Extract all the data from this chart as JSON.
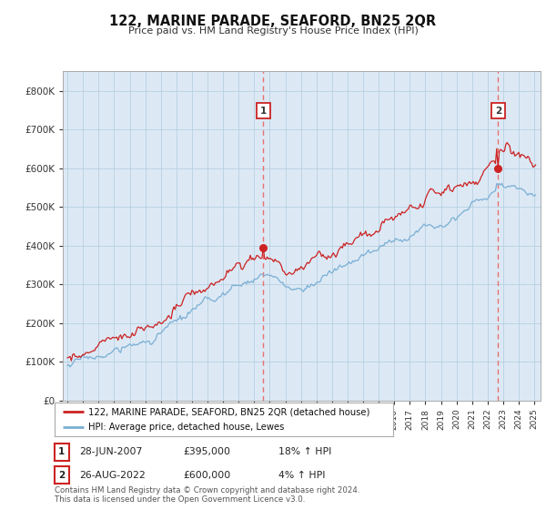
{
  "title": "122, MARINE PARADE, SEAFORD, BN25 2QR",
  "subtitle": "Price paid vs. HM Land Registry's House Price Index (HPI)",
  "bg_color": "#ffffff",
  "plot_bg_color": "#dce9f5",
  "red_color": "#cc2222",
  "blue_color": "#7bafd4",
  "dashed_color": "#e87070",
  "legend_label_red": "122, MARINE PARADE, SEAFORD, BN25 2QR (detached house)",
  "legend_label_blue": "HPI: Average price, detached house, Lewes",
  "t1_x": 2007.583,
  "t1_price": 395000,
  "t2_x": 2022.667,
  "t2_price": 600000,
  "yticks": [
    0,
    100000,
    200000,
    300000,
    400000,
    500000,
    600000,
    700000,
    800000
  ],
  "ylim": [
    0,
    850000
  ],
  "xlim_left": 1994.7,
  "xlim_right": 2025.4,
  "footer": "Contains HM Land Registry data © Crown copyright and database right 2024.\nThis data is licensed under the Open Government Licence v3.0."
}
